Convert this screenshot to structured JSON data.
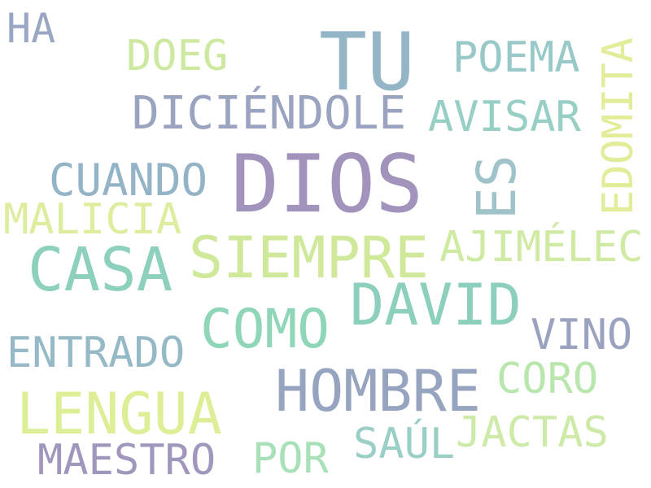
{
  "words": [
    {
      "key": "tu",
      "text": "TU",
      "color": "#93b5c6"
    },
    {
      "key": "dios",
      "text": "DIOS",
      "color": "#a193bb"
    },
    {
      "key": "siempre",
      "text": "SIEMPRE",
      "color": "#cfe89a"
    },
    {
      "key": "casa",
      "text": "CASA",
      "color": "#8dd0bd"
    },
    {
      "key": "david",
      "text": "DAVID",
      "color": "#8ccfbd"
    },
    {
      "key": "como",
      "text": "COMO",
      "color": "#8fd6b8"
    },
    {
      "key": "hombre",
      "text": "HOMBRE",
      "color": "#97a4c0"
    },
    {
      "key": "lengua",
      "text": "LENGUA",
      "color": "#dcee96"
    },
    {
      "key": "es",
      "text": "ES",
      "color": "#9fc3c8"
    },
    {
      "key": "edomita",
      "text": "EDOMITA",
      "color": "#e3ec98"
    },
    {
      "key": "diciendole",
      "text": "DICIÉNDOLE",
      "color": "#9aa3bf"
    },
    {
      "key": "avisar",
      "text": "AVISAR",
      "color": "#97cfc6"
    },
    {
      "key": "poema",
      "text": "POEMA",
      "color": "#98c9c8"
    },
    {
      "key": "doeg",
      "text": "DOEG",
      "color": "#cde9a0"
    },
    {
      "key": "ha",
      "text": "HA",
      "color": "#9aa7c2"
    },
    {
      "key": "cuando",
      "text": "CUANDO",
      "color": "#93b3c7"
    },
    {
      "key": "malicia",
      "text": "MALICIA",
      "color": "#dcee9e"
    },
    {
      "key": "ajimelec",
      "text": "AJIMÉLEC",
      "color": "#cfeaa3"
    },
    {
      "key": "vino",
      "text": "VINO",
      "color": "#9aa2c0"
    },
    {
      "key": "entrado",
      "text": "ENTRADO",
      "color": "#95b9c7"
    },
    {
      "key": "coro",
      "text": "CORO",
      "color": "#b9e6ad"
    },
    {
      "key": "jactas",
      "text": "JACTAS",
      "color": "#cdeaa8"
    },
    {
      "key": "saul",
      "text": "SAÚL",
      "color": "#99cfc6"
    },
    {
      "key": "por",
      "text": "POR",
      "color": "#a8e0b8"
    },
    {
      "key": "maestro",
      "text": "MAESTRO",
      "color": "#a196bc"
    }
  ]
}
